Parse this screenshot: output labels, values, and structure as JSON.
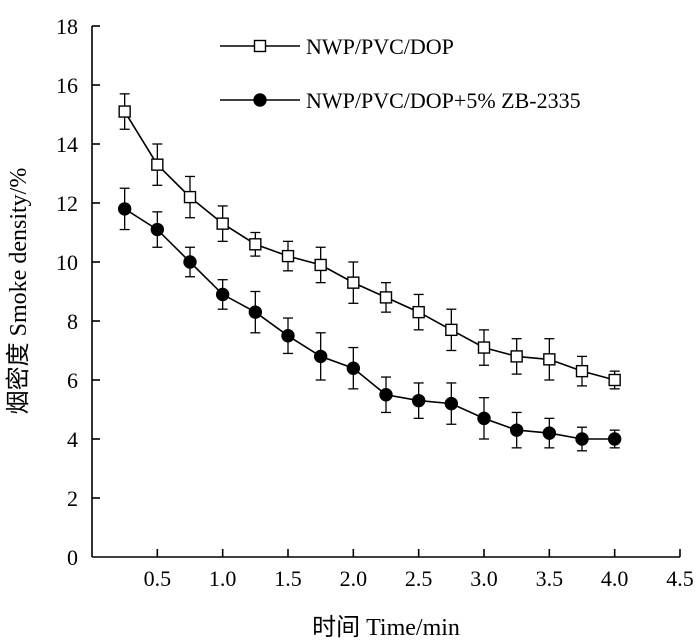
{
  "chart_data": {
    "type": "line",
    "title": "",
    "xlabel": "时间 Time/min",
    "ylabel": "烟密度 Smoke density/%",
    "xlim": [
      0,
      4.5
    ],
    "ylim": [
      0,
      18
    ],
    "xticks": [
      0.5,
      1.0,
      1.5,
      2.0,
      2.5,
      3.0,
      3.5,
      4.0,
      4.5
    ],
    "xtick_labels": [
      "0.5",
      "1.0",
      "1.5",
      "2.0",
      "2.5",
      "3.0",
      "3.5",
      "4.0",
      "4.5"
    ],
    "yticks": [
      0,
      2,
      4,
      6,
      8,
      10,
      12,
      14,
      16,
      18
    ],
    "ytick_labels": [
      "0",
      "2",
      "4",
      "6",
      "8",
      "10",
      "12",
      "14",
      "16",
      "18"
    ],
    "origin_label": "0",
    "grid": false,
    "legend_position": "top-right",
    "x": [
      0.25,
      0.5,
      0.75,
      1.0,
      1.25,
      1.5,
      1.75,
      2.0,
      2.25,
      2.5,
      2.75,
      3.0,
      3.25,
      3.5,
      3.75,
      4.0
    ],
    "series": [
      {
        "name": "NWP/PVC/DOP",
        "marker": "open-square",
        "values": [
          15.1,
          13.3,
          12.2,
          11.3,
          10.6,
          10.2,
          9.9,
          9.3,
          8.8,
          8.3,
          7.7,
          7.1,
          6.8,
          6.7,
          6.3,
          6.0
        ],
        "errors": [
          0.6,
          0.7,
          0.7,
          0.6,
          0.4,
          0.5,
          0.6,
          0.7,
          0.5,
          0.6,
          0.7,
          0.6,
          0.6,
          0.7,
          0.5,
          0.3
        ]
      },
      {
        "name": "NWP/PVC/DOP+5% ZB-2335",
        "marker": "filled-circle",
        "values": [
          11.8,
          11.1,
          10.0,
          8.9,
          8.3,
          7.5,
          6.8,
          6.4,
          5.5,
          5.3,
          5.2,
          4.7,
          4.3,
          4.2,
          4.0,
          4.0
        ],
        "errors": [
          0.7,
          0.6,
          0.5,
          0.5,
          0.7,
          0.6,
          0.8,
          0.7,
          0.6,
          0.6,
          0.7,
          0.7,
          0.6,
          0.5,
          0.4,
          0.3
        ]
      }
    ]
  }
}
